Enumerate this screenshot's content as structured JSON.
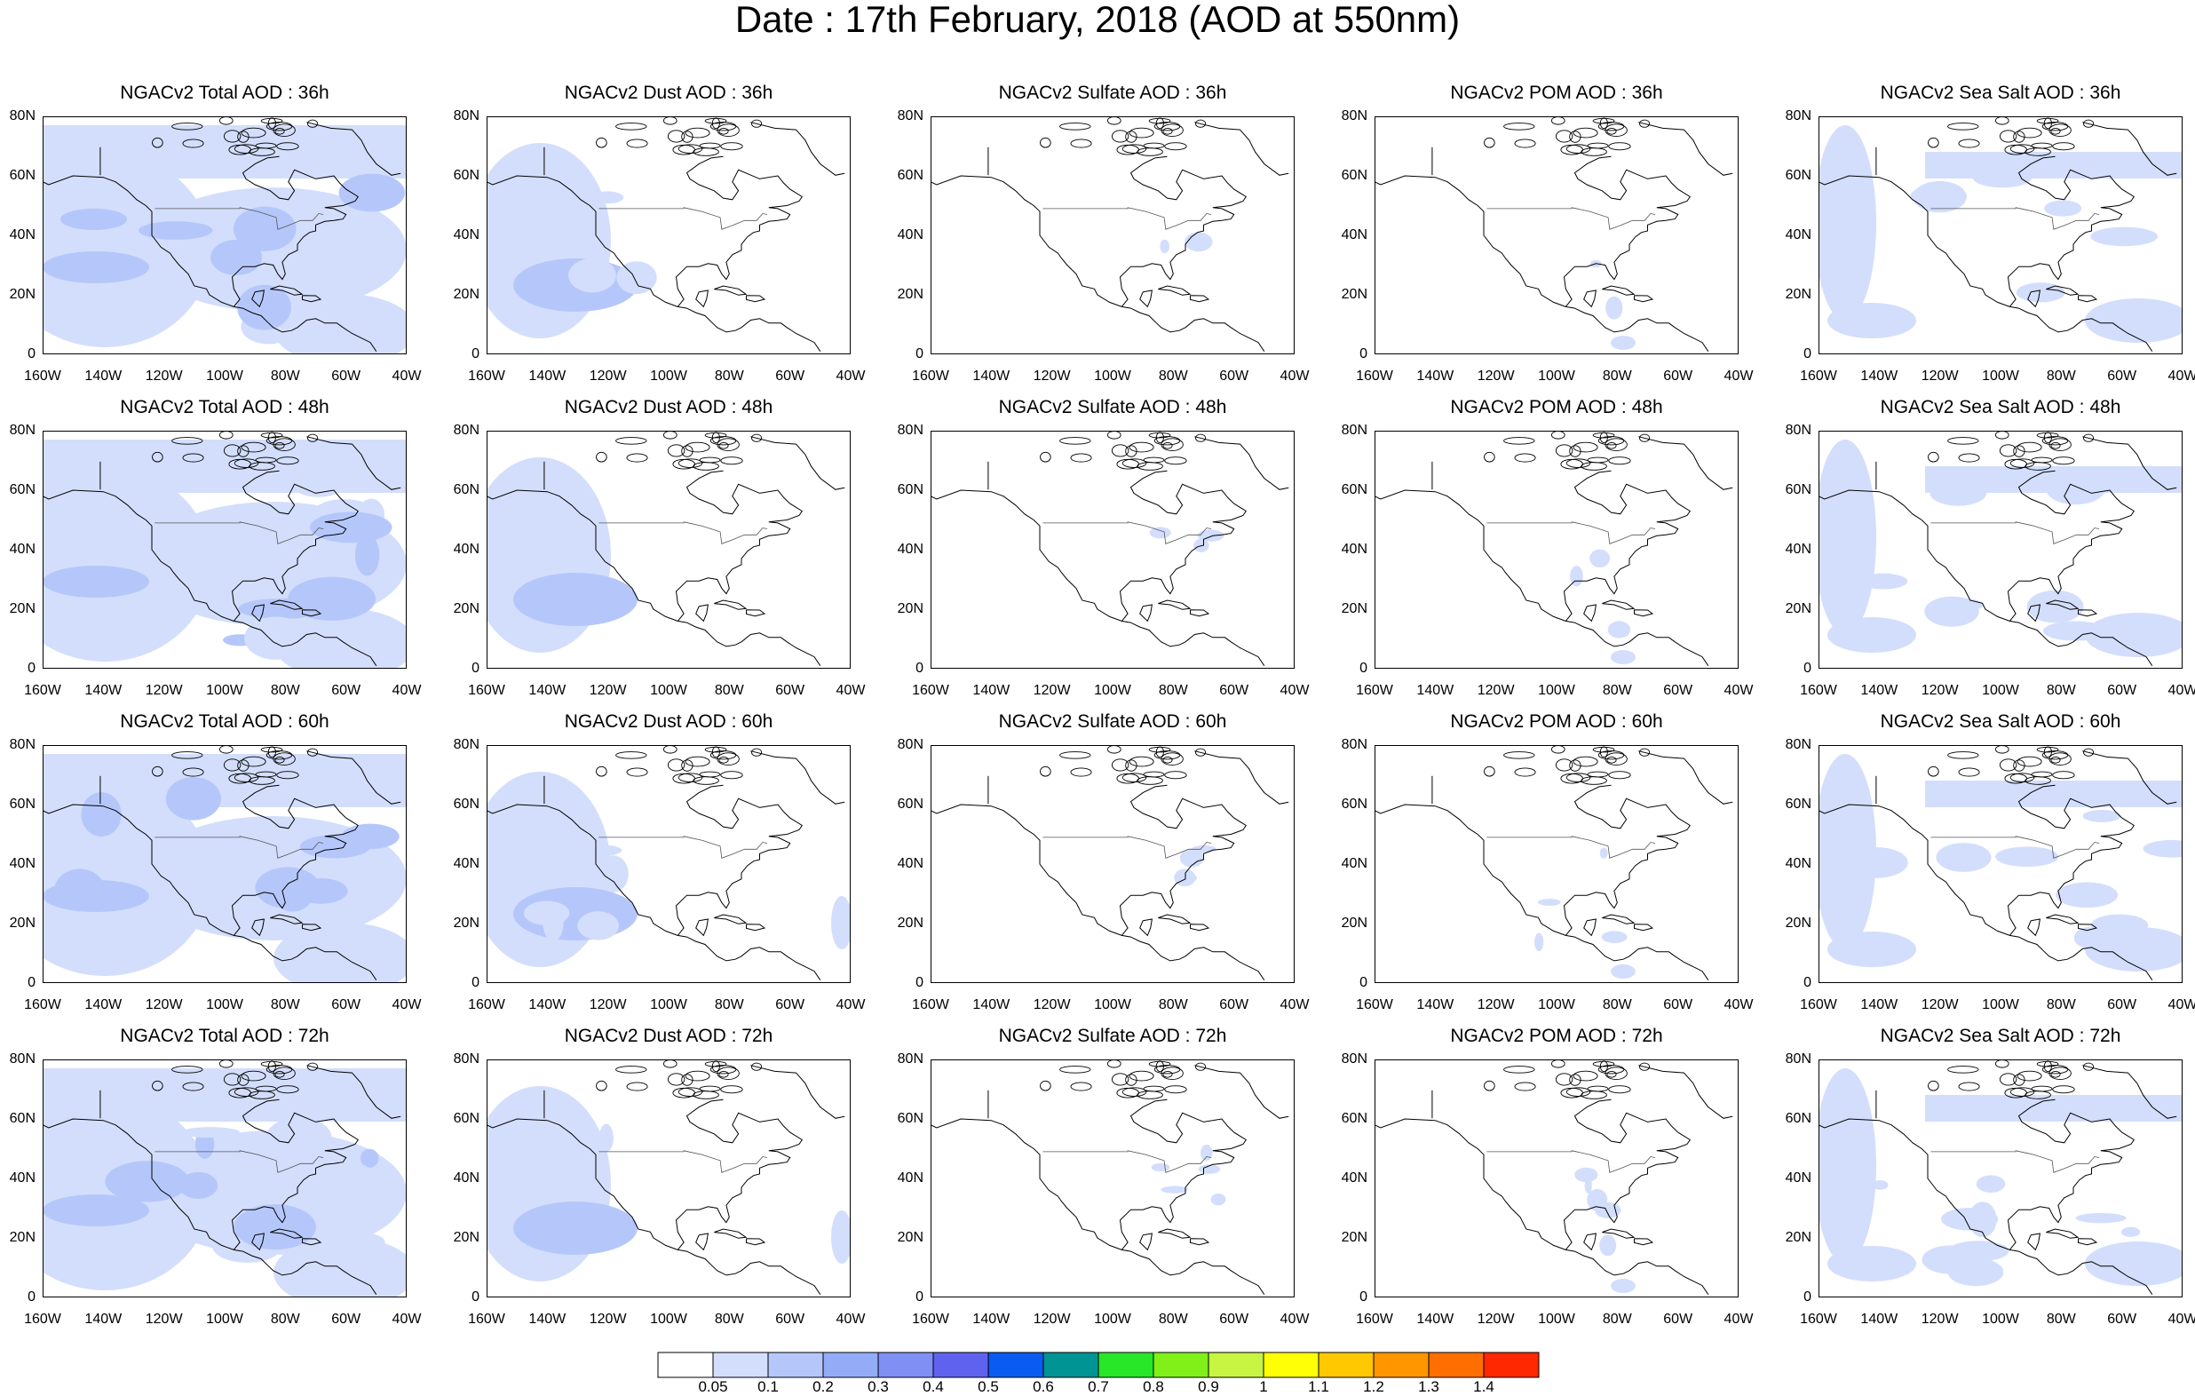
{
  "title": "Date : 17th February, 2018 (AOD at 550nm)",
  "x_ticks": [
    "160W",
    "140W",
    "120W",
    "100W",
    "80W",
    "60W",
    "40W"
  ],
  "y_ticks": [
    "80N",
    "60N",
    "40N",
    "20N",
    "0"
  ],
  "rows": [
    {
      "forecast": "36h",
      "titles": [
        "NGACv2 Total AOD : 36h",
        "NGACv2 Dust AOD : 36h",
        "NGACv2 Sulfate AOD : 36h",
        "NGACv2 POM AOD : 36h",
        "NGACv2 Sea Salt AOD : 36h"
      ]
    },
    {
      "forecast": "48h",
      "titles": [
        "NGACv2 Total AOD : 48h",
        "NGACv2 Dust AOD : 48h",
        "NGACv2 Sulfate AOD : 48h",
        "NGACv2 POM AOD : 48h",
        "NGACv2 Sea Salt AOD : 48h"
      ]
    },
    {
      "forecast": "60h",
      "titles": [
        "NGACv2 Total AOD : 60h",
        "NGACv2 Dust AOD : 60h",
        "NGACv2 Sulfate AOD : 60h",
        "NGACv2 POM AOD : 60h",
        "NGACv2 Sea Salt AOD : 60h"
      ]
    },
    {
      "forecast": "72h",
      "titles": [
        "NGACv2 Total AOD : 72h",
        "NGACv2 Dust AOD : 72h",
        "NGACv2 Sulfate AOD : 72h",
        "NGACv2 POM AOD : 72h",
        "NGACv2 Sea Salt  AOD : 72h"
      ]
    }
  ],
  "colorbar": {
    "labels": [
      "0.05",
      "0.1",
      "0.2",
      "0.3",
      "0.4",
      "0.5",
      "0.6",
      "0.7",
      "0.8",
      "0.9",
      "1",
      "1.1",
      "1.2",
      "1.3",
      "1.4"
    ],
    "colors": [
      "#ffffff",
      "#d3defc",
      "#b5c7fa",
      "#94acf7",
      "#7f8ff3",
      "#5f62ef",
      "#0a5bf2",
      "#009494",
      "#28e628",
      "#80f018",
      "#c7f542",
      "#ffff05",
      "#ffc800",
      "#ff9600",
      "#ff6e00",
      "#ff2800"
    ]
  },
  "shade_colors": {
    "light": "#d3defc",
    "medium": "#b5c7fa",
    "dark": "#94acf7"
  }
}
